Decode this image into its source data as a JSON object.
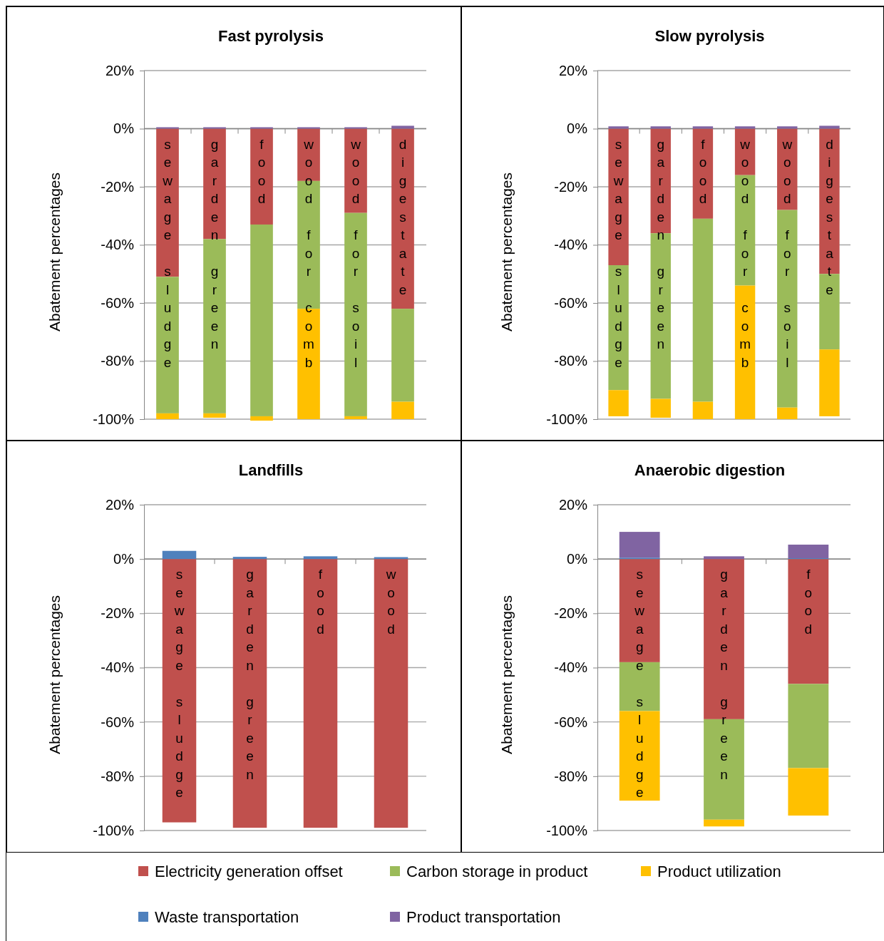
{
  "chart_data": [
    {
      "type": "bar",
      "title": "Fast pyrolysis",
      "ylabel": "Abatement percentages",
      "categories": [
        "sewage sludge",
        "garden green",
        "food",
        "wood for comb",
        "wood for soil",
        "digestate"
      ],
      "stacked": true,
      "ylim": [
        -100,
        20
      ],
      "yticks": [
        {
          "value": -100,
          "label": "-100%"
        },
        {
          "value": -80,
          "label": "-80%"
        },
        {
          "value": -60,
          "label": "-60%"
        },
        {
          "value": -40,
          "label": "-40%"
        },
        {
          "value": -20,
          "label": "-20%"
        },
        {
          "value": 0,
          "label": "0%"
        },
        {
          "value": 20,
          "label": "20%"
        }
      ],
      "grid": "y",
      "series": [
        {
          "color": "#c0504d",
          "values": [
            -51,
            -38,
            -33,
            -18,
            -29,
            -62
          ]
        },
        {
          "color": "#9bbb59",
          "values": [
            -47,
            -60,
            -66,
            -44,
            -70,
            -32
          ]
        },
        {
          "color": "#ffc000",
          "values": [
            -2,
            -1.5,
            -1.5,
            -38,
            -1,
            -6
          ]
        },
        {
          "color": "#8064a2",
          "values": [
            0.5,
            0.5,
            0.5,
            0.5,
            0.5,
            1
          ]
        }
      ]
    },
    {
      "type": "bar",
      "title": "Slow pyrolysis",
      "ylabel": "Abatement percentages",
      "categories": [
        "sewage sludge",
        "garden green",
        "food",
        "wood for comb",
        "wood for soil",
        "digestate"
      ],
      "stacked": true,
      "ylim": [
        -100,
        20
      ],
      "yticks": [
        {
          "value": -100,
          "label": "-100%"
        },
        {
          "value": -80,
          "label": "-80%"
        },
        {
          "value": -60,
          "label": "-60%"
        },
        {
          "value": -40,
          "label": "-40%"
        },
        {
          "value": -20,
          "label": "-20%"
        },
        {
          "value": 0,
          "label": "0%"
        },
        {
          "value": 20,
          "label": "20%"
        }
      ],
      "grid": "y",
      "series": [
        {
          "color": "#c0504d",
          "values": [
            -47,
            -36,
            -31,
            -16,
            -28,
            -50
          ]
        },
        {
          "color": "#9bbb59",
          "values": [
            -43,
            -57,
            -63,
            -38,
            -68,
            -26
          ]
        },
        {
          "color": "#ffc000",
          "values": [
            -9,
            -6.5,
            -6,
            -46,
            -4,
            -23
          ]
        },
        {
          "color": "#8064a2",
          "values": [
            0.8,
            0.8,
            0.8,
            0.8,
            0.8,
            1
          ]
        }
      ]
    },
    {
      "type": "bar",
      "title": "Landfills",
      "ylabel": "Abatement percentages",
      "categories": [
        "sewage sludge",
        "garden green",
        "food",
        "wood"
      ],
      "stacked": true,
      "ylim": [
        -100,
        20
      ],
      "yticks": [
        {
          "value": -100,
          "label": "-100%"
        },
        {
          "value": -80,
          "label": "-80%"
        },
        {
          "value": -60,
          "label": "-60%"
        },
        {
          "value": -40,
          "label": "-40%"
        },
        {
          "value": -20,
          "label": "-20%"
        },
        {
          "value": 0,
          "label": "0%"
        },
        {
          "value": 20,
          "label": "20%"
        }
      ],
      "grid": "y",
      "series": [
        {
          "color": "#c0504d",
          "values": [
            -97,
            -99,
            -99,
            -99
          ]
        },
        {
          "color": "#4f81bd",
          "values": [
            3,
            0.8,
            1,
            0.7
          ]
        }
      ]
    },
    {
      "type": "bar",
      "title": "Anaerobic digestion",
      "ylabel": "Abatement percentages",
      "categories": [
        "sewage sludge",
        "garden green",
        "food"
      ],
      "stacked": true,
      "ylim": [
        -100,
        20
      ],
      "yticks": [
        {
          "value": -100,
          "label": "-100%"
        },
        {
          "value": -80,
          "label": "-80%"
        },
        {
          "value": -60,
          "label": "-60%"
        },
        {
          "value": -40,
          "label": "-40%"
        },
        {
          "value": -20,
          "label": "-20%"
        },
        {
          "value": 0,
          "label": "0%"
        },
        {
          "value": 20,
          "label": "20%"
        }
      ],
      "grid": "y",
      "legend": "bottom",
      "series": [
        {
          "name": "Electricity generation offset",
          "color": "#c0504d",
          "values": [
            -38,
            -59,
            -46
          ]
        },
        {
          "name": "Carbon storage in product",
          "color": "#9bbb59",
          "values": [
            -18,
            -37,
            -31
          ]
        },
        {
          "name": "Product utilization",
          "color": "#ffc000",
          "values": [
            -33,
            -2.5,
            -17.5
          ]
        },
        {
          "name": "Waste transportation",
          "color": "#4f81bd",
          "values": [
            0.5,
            null,
            0.3
          ]
        },
        {
          "name": "Product transportation",
          "color": "#8064a2",
          "values": [
            9.5,
            1,
            5
          ]
        }
      ]
    }
  ]
}
